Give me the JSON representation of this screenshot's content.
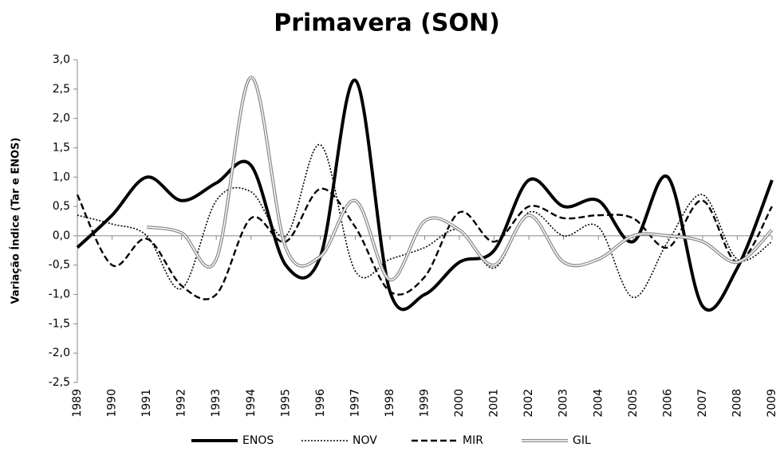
{
  "chart_data": {
    "type": "line",
    "title": "Primavera (SON)",
    "ylabel": "Variação Índice (Tar e ENOS)",
    "x": [
      1989,
      1990,
      1991,
      1992,
      1993,
      1994,
      1995,
      1996,
      1997,
      1998,
      1999,
      2000,
      2001,
      2002,
      2003,
      2004,
      2005,
      2006,
      2007,
      2008,
      2009
    ],
    "xlim": [
      1989,
      2009
    ],
    "xticks": [
      1989,
      1990,
      1991,
      1992,
      1993,
      1994,
      1995,
      1996,
      1997,
      1998,
      1999,
      2000,
      2001,
      2002,
      2003,
      2004,
      2005,
      2006,
      2007,
      2008,
      2009
    ],
    "ylim": [
      -2.5,
      3.0
    ],
    "yticks": [
      {
        "value": -2.5,
        "label": "-2,5"
      },
      {
        "value": -2.0,
        "label": "-2,0"
      },
      {
        "value": -1.5,
        "label": "-1,5"
      },
      {
        "value": -1.0,
        "label": "-1,0"
      },
      {
        "value": -0.5,
        "label": "-0,5"
      },
      {
        "value": 0.0,
        "label": "0,0"
      },
      {
        "value": 0.5,
        "label": "0,5"
      },
      {
        "value": 1.0,
        "label": "1,0"
      },
      {
        "value": 1.5,
        "label": "1,5"
      },
      {
        "value": 2.0,
        "label": "2,0"
      },
      {
        "value": 2.5,
        "label": "2,5"
      },
      {
        "value": 3.0,
        "label": "3,0"
      }
    ],
    "legend": "bottom",
    "series": [
      {
        "name": "ENOS",
        "color": "#000000",
        "style": "solid",
        "values": [
          -0.2,
          0.35,
          1.0,
          0.6,
          0.9,
          1.2,
          -0.5,
          -0.35,
          2.65,
          -0.95,
          -1.0,
          -0.45,
          -0.25,
          0.95,
          0.5,
          0.6,
          -0.1,
          1.0,
          -1.2,
          -0.55,
          0.95
        ]
      },
      {
        "name": "NOV",
        "color": "#000000",
        "style": "dotted",
        "values": [
          0.35,
          0.2,
          0.0,
          -0.9,
          0.6,
          0.75,
          0.0,
          1.55,
          -0.6,
          -0.4,
          -0.2,
          0.1,
          -0.55,
          0.4,
          0.0,
          0.15,
          -1.05,
          -0.1,
          0.7,
          -0.4,
          -0.1
        ]
      },
      {
        "name": "MIR",
        "color": "#000000",
        "style": "dashed",
        "values": [
          0.7,
          -0.5,
          -0.05,
          -0.85,
          -1.0,
          0.3,
          -0.1,
          0.8,
          0.15,
          -0.95,
          -0.7,
          0.4,
          -0.1,
          0.5,
          0.3,
          0.35,
          0.3,
          -0.2,
          0.6,
          -0.45,
          0.5
        ]
      },
      {
        "name": "GIL",
        "color": "#8c8c8c",
        "style": "double",
        "values": [
          null,
          null,
          0.15,
          0.05,
          -0.4,
          2.7,
          -0.2,
          -0.35,
          0.6,
          -0.75,
          0.25,
          0.1,
          -0.5,
          0.35,
          -0.45,
          -0.4,
          0.0,
          0.0,
          -0.1,
          -0.45,
          0.1
        ]
      }
    ]
  }
}
